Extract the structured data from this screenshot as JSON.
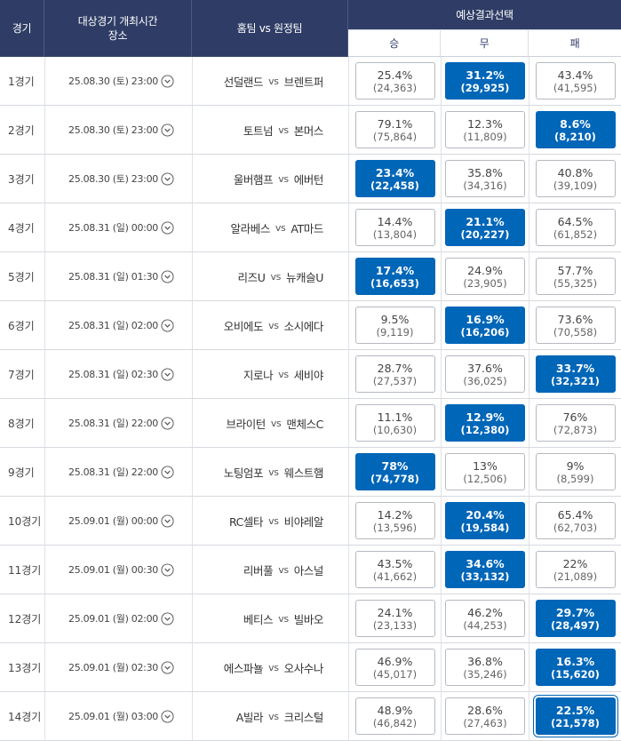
{
  "header": {
    "match_col": "경기",
    "datetime_col_line1": "대상경기 개최시간",
    "datetime_col_line2": "장소",
    "teams_col": "홈팀 vs 원정팀",
    "prediction_col": "예상결과선택",
    "win": "승",
    "draw": "무",
    "loss": "패"
  },
  "vs_text": "vs",
  "accent_color": "#0066b8",
  "header_color": "#2f3d66",
  "rows": [
    {
      "no": "1경기",
      "datetime": "25.08.30 (토) 23:00",
      "home": "선덜랜드",
      "away": "브렌트퍼",
      "win": {
        "pct": "25.4%",
        "cnt": "(24,363)",
        "sel": false
      },
      "draw": {
        "pct": "31.2%",
        "cnt": "(29,925)",
        "sel": true
      },
      "loss": {
        "pct": "43.4%",
        "cnt": "(41,595)",
        "sel": false
      }
    },
    {
      "no": "2경기",
      "datetime": "25.08.30 (토) 23:00",
      "home": "토트넘",
      "away": "본머스",
      "win": {
        "pct": "79.1%",
        "cnt": "(75,864)",
        "sel": false
      },
      "draw": {
        "pct": "12.3%",
        "cnt": "(11,809)",
        "sel": false
      },
      "loss": {
        "pct": "8.6%",
        "cnt": "(8,210)",
        "sel": true
      }
    },
    {
      "no": "3경기",
      "datetime": "25.08.30 (토) 23:00",
      "home": "울버햄프",
      "away": "에버턴",
      "win": {
        "pct": "23.4%",
        "cnt": "(22,458)",
        "sel": true
      },
      "draw": {
        "pct": "35.8%",
        "cnt": "(34,316)",
        "sel": false
      },
      "loss": {
        "pct": "40.8%",
        "cnt": "(39,109)",
        "sel": false
      }
    },
    {
      "no": "4경기",
      "datetime": "25.08.31 (일) 00:00",
      "home": "알라베스",
      "away": "AT마드",
      "win": {
        "pct": "14.4%",
        "cnt": "(13,804)",
        "sel": false
      },
      "draw": {
        "pct": "21.1%",
        "cnt": "(20,227)",
        "sel": true
      },
      "loss": {
        "pct": "64.5%",
        "cnt": "(61,852)",
        "sel": false
      }
    },
    {
      "no": "5경기",
      "datetime": "25.08.31 (일) 01:30",
      "home": "리즈U",
      "away": "뉴캐슬U",
      "win": {
        "pct": "17.4%",
        "cnt": "(16,653)",
        "sel": true
      },
      "draw": {
        "pct": "24.9%",
        "cnt": "(23,905)",
        "sel": false
      },
      "loss": {
        "pct": "57.7%",
        "cnt": "(55,325)",
        "sel": false
      }
    },
    {
      "no": "6경기",
      "datetime": "25.08.31 (일) 02:00",
      "home": "오비에도",
      "away": "소시에다",
      "win": {
        "pct": "9.5%",
        "cnt": "(9,119)",
        "sel": false
      },
      "draw": {
        "pct": "16.9%",
        "cnt": "(16,206)",
        "sel": true
      },
      "loss": {
        "pct": "73.6%",
        "cnt": "(70,558)",
        "sel": false
      }
    },
    {
      "no": "7경기",
      "datetime": "25.08.31 (일) 02:30",
      "home": "지로나",
      "away": "세비야",
      "win": {
        "pct": "28.7%",
        "cnt": "(27,537)",
        "sel": false
      },
      "draw": {
        "pct": "37.6%",
        "cnt": "(36,025)",
        "sel": false
      },
      "loss": {
        "pct": "33.7%",
        "cnt": "(32,321)",
        "sel": true
      }
    },
    {
      "no": "8경기",
      "datetime": "25.08.31 (일) 22:00",
      "home": "브라이턴",
      "away": "맨체스C",
      "win": {
        "pct": "11.1%",
        "cnt": "(10,630)",
        "sel": false
      },
      "draw": {
        "pct": "12.9%",
        "cnt": "(12,380)",
        "sel": true
      },
      "loss": {
        "pct": "76%",
        "cnt": "(72,873)",
        "sel": false
      }
    },
    {
      "no": "9경기",
      "datetime": "25.08.31 (일) 22:00",
      "home": "노팅엄포",
      "away": "웨스트햄",
      "win": {
        "pct": "78%",
        "cnt": "(74,778)",
        "sel": true
      },
      "draw": {
        "pct": "13%",
        "cnt": "(12,506)",
        "sel": false
      },
      "loss": {
        "pct": "9%",
        "cnt": "(8,599)",
        "sel": false
      }
    },
    {
      "no": "10경기",
      "datetime": "25.09.01 (월) 00:00",
      "home": "RC셀타",
      "away": "비야레알",
      "win": {
        "pct": "14.2%",
        "cnt": "(13,596)",
        "sel": false
      },
      "draw": {
        "pct": "20.4%",
        "cnt": "(19,584)",
        "sel": true
      },
      "loss": {
        "pct": "65.4%",
        "cnt": "(62,703)",
        "sel": false
      }
    },
    {
      "no": "11경기",
      "datetime": "25.09.01 (월) 00:30",
      "home": "리버풀",
      "away": "아스널",
      "win": {
        "pct": "43.5%",
        "cnt": "(41,662)",
        "sel": false
      },
      "draw": {
        "pct": "34.6%",
        "cnt": "(33,132)",
        "sel": true
      },
      "loss": {
        "pct": "22%",
        "cnt": "(21,089)",
        "sel": false
      }
    },
    {
      "no": "12경기",
      "datetime": "25.09.01 (월) 02:00",
      "home": "베티스",
      "away": "빌바오",
      "win": {
        "pct": "24.1%",
        "cnt": "(23,133)",
        "sel": false
      },
      "draw": {
        "pct": "46.2%",
        "cnt": "(44,253)",
        "sel": false
      },
      "loss": {
        "pct": "29.7%",
        "cnt": "(28,497)",
        "sel": true
      }
    },
    {
      "no": "13경기",
      "datetime": "25.09.01 (월) 02:30",
      "home": "에스파뇰",
      "away": "오사수나",
      "win": {
        "pct": "46.9%",
        "cnt": "(45,017)",
        "sel": false
      },
      "draw": {
        "pct": "36.8%",
        "cnt": "(35,246)",
        "sel": false
      },
      "loss": {
        "pct": "16.3%",
        "cnt": "(15,620)",
        "sel": true
      }
    },
    {
      "no": "14경기",
      "datetime": "25.09.01 (월) 03:00",
      "home": "A빌라",
      "away": "크리스털",
      "win": {
        "pct": "48.9%",
        "cnt": "(46,842)",
        "sel": false
      },
      "draw": {
        "pct": "28.6%",
        "cnt": "(27,463)",
        "sel": false
      },
      "loss": {
        "pct": "22.5%",
        "cnt": "(21,578)",
        "sel": true,
        "focus": true
      }
    }
  ]
}
